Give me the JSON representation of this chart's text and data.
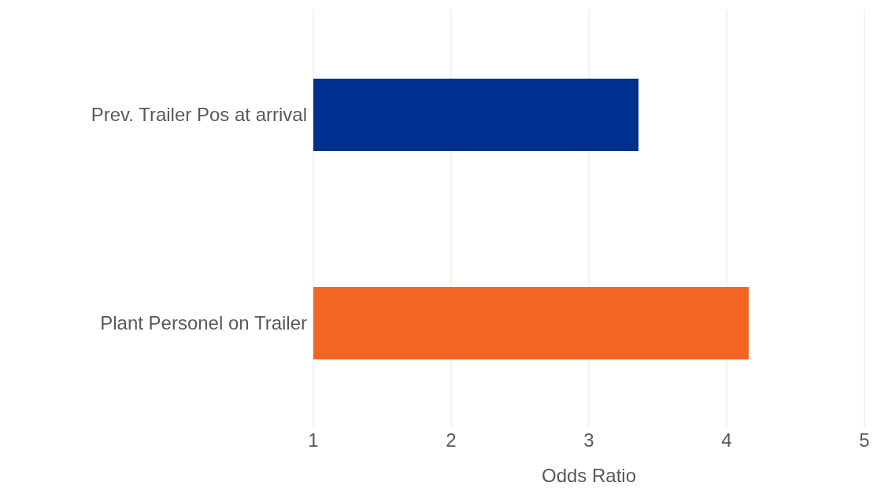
{
  "chart_data": {
    "type": "bar",
    "orientation": "horizontal",
    "categories": [
      "Prev. Trailer Pos at arrival",
      "Plant Personel on Trailer"
    ],
    "values": [
      3.36,
      4.16
    ],
    "colors": [
      "#00308f",
      "#f26522"
    ],
    "xlabel": "Odds Ratio",
    "xlim": [
      1,
      5
    ],
    "xticks": [
      1,
      2,
      3,
      4,
      5
    ],
    "grid": "x",
    "legend": false
  }
}
